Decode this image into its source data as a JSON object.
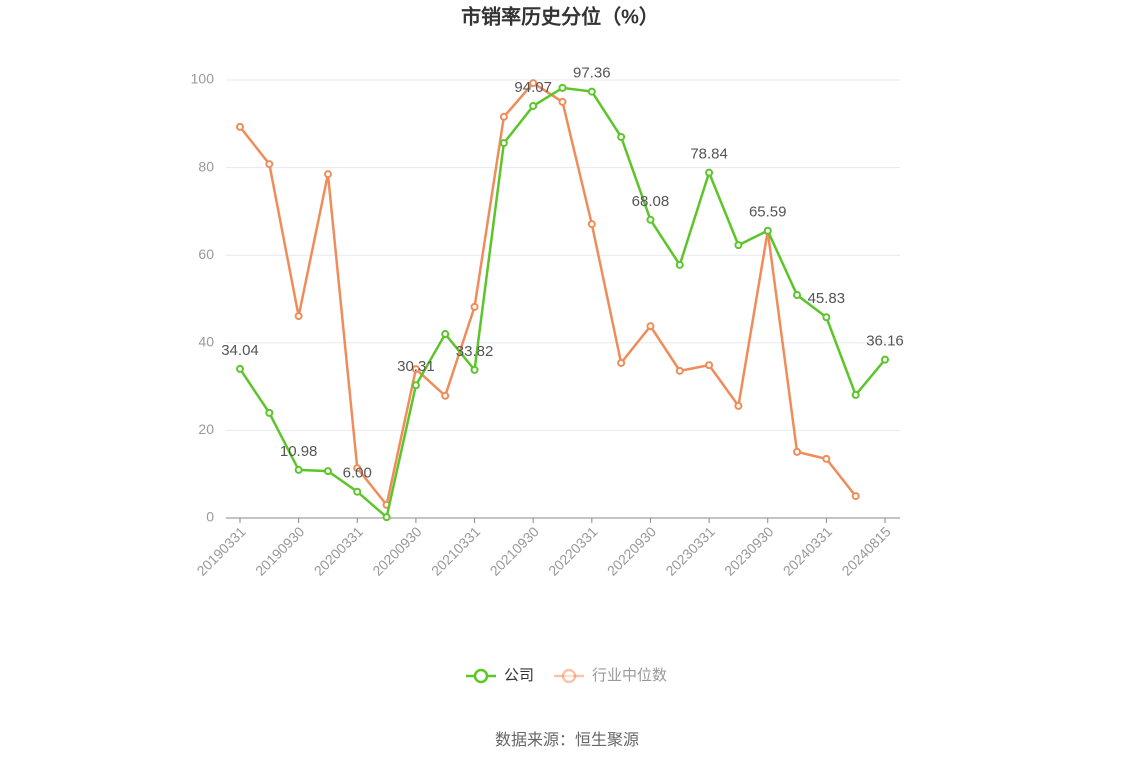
{
  "chart_data": {
    "type": "line",
    "title": "市销率历史分位（%）",
    "categories": [
      "20190331",
      null,
      "20190930",
      null,
      "20200331",
      null,
      "20200930",
      null,
      "20210331",
      null,
      "20210930",
      null,
      "20220331",
      null,
      "20220930",
      null,
      "20230331",
      null,
      "20230930",
      null,
      "20240331",
      null,
      "20240815"
    ],
    "series": [
      {
        "name": "公司",
        "color": "#5cc52a",
        "values": [
          34.04,
          24.0,
          10.98,
          10.7,
          6.0,
          0.2,
          30.31,
          42.0,
          33.82,
          85.6,
          94.07,
          98.2,
          97.36,
          87.0,
          68.08,
          57.8,
          78.84,
          62.3,
          65.59,
          50.9,
          45.83,
          28.1,
          36.16
        ],
        "value_labels": [
          "34.04",
          null,
          "10.98",
          null,
          "6.00",
          null,
          "30.31",
          null,
          "33.82",
          null,
          "94.07",
          null,
          "97.36",
          null,
          "68.08",
          null,
          "78.84",
          null,
          "65.59",
          null,
          "45.83",
          null,
          "36.16"
        ]
      },
      {
        "name": "行业中位数",
        "color": "#f08c5a",
        "values": [
          89.3,
          80.8,
          46.1,
          78.5,
          11.4,
          3.0,
          34.0,
          27.9,
          48.2,
          91.6,
          99.3,
          95.0,
          67.1,
          35.4,
          43.8,
          33.6,
          34.9,
          25.6,
          65.5,
          15.1,
          13.5,
          5.0,
          null
        ]
      }
    ],
    "ylim": [
      0,
      100
    ],
    "yticks": [
      0,
      20,
      40,
      60,
      80,
      100
    ],
    "grid": true,
    "legend": "bottom",
    "source": "数据来源：恒生聚源"
  }
}
